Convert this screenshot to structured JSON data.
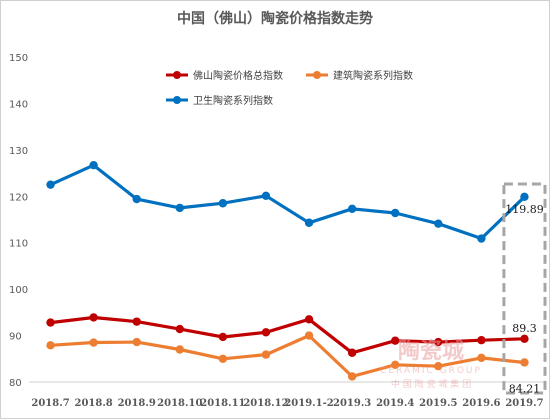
{
  "chart_data": {
    "type": "line",
    "title": "中国（佛山）陶瓷价格指数走势",
    "xlabel": "",
    "ylabel": "",
    "ylim": [
      80,
      150
    ],
    "yticks": [
      80,
      90,
      100,
      110,
      120,
      130,
      140,
      150
    ],
    "grid": false,
    "legend_position": "top-left",
    "categories": [
      "2018.7",
      "2018.8",
      "2018.9",
      "2018.10",
      "2018.11",
      "2018.12",
      "2019.1-2",
      "2019.3",
      "2019.4",
      "2019.5",
      "2019.6",
      "2019.7"
    ],
    "series": [
      {
        "name": "佛山陶瓷价格总指数",
        "color": "#c00000",
        "values": [
          92.8,
          93.9,
          93.0,
          91.4,
          89.7,
          90.7,
          93.5,
          86.3,
          88.9,
          88.6,
          89.0,
          89.3
        ]
      },
      {
        "name": "建筑陶瓷系列指数",
        "color": "#ed7d31",
        "values": [
          87.9,
          88.5,
          88.6,
          87.0,
          85.0,
          85.9,
          90.0,
          81.2,
          83.7,
          83.4,
          85.2,
          84.21
        ]
      },
      {
        "name": "卫生陶瓷系列指数",
        "color": "#0070c0",
        "values": [
          122.5,
          126.7,
          119.4,
          117.5,
          118.5,
          120.1,
          114.3,
          117.3,
          116.4,
          114.1,
          110.9,
          119.89
        ]
      }
    ],
    "data_labels": [
      {
        "series": 2,
        "index": 11,
        "text": "119.89"
      },
      {
        "series": 0,
        "index": 11,
        "text": "89.3"
      },
      {
        "series": 1,
        "index": 11,
        "text": "84.21"
      }
    ],
    "highlight_index": 11,
    "highlight_color": "#a6a6a6"
  },
  "watermark": {
    "main": "陶瓷城",
    "sub": "CERAMIC GROUP",
    "cn": "中 国 陶 瓷 城 集 团",
    "color": "#e8a0a0"
  }
}
